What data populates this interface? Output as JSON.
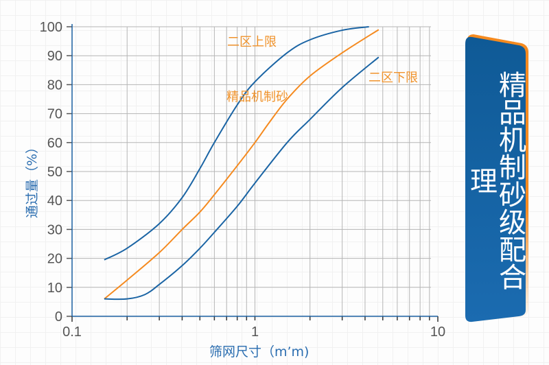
{
  "chart_data": {
    "type": "line",
    "title": "",
    "xlabel": "筛网尺寸（m’m)",
    "ylabel": "通过量（%）",
    "xscale": "log",
    "xlim": [
      0.1,
      10
    ],
    "ylim": [
      0,
      100
    ],
    "grid": true,
    "xticks": [
      "0.1",
      "1",
      "10"
    ],
    "yticks": [
      "0",
      "10",
      "20",
      "30",
      "40",
      "50",
      "60",
      "70",
      "80",
      "90",
      "100"
    ],
    "series": [
      {
        "name": "二区上限",
        "color": "#1a64a4",
        "x": [
          0.15,
          0.2,
          0.3,
          0.4,
          0.5,
          0.6,
          0.8,
          1,
          1.5,
          2,
          3,
          4.2
        ],
        "y": [
          19.5,
          23.5,
          32,
          41,
          51,
          60,
          73,
          81,
          91,
          95.5,
          98.8,
          100
        ]
      },
      {
        "name": "精品机制砂",
        "color": "#f58a1f",
        "x": [
          0.15,
          0.2,
          0.3,
          0.4,
          0.5,
          0.6,
          0.8,
          1,
          1.2,
          1.5,
          2,
          3,
          4.75
        ],
        "y": [
          6,
          12.5,
          22,
          30,
          36,
          42,
          52,
          60,
          67,
          75,
          83,
          91,
          99
        ]
      },
      {
        "name": "二区下限",
        "color": "#1a64a4",
        "x": [
          0.15,
          0.2,
          0.25,
          0.3,
          0.4,
          0.5,
          0.6,
          0.8,
          1,
          1.5,
          2,
          3,
          4.75
        ],
        "y": [
          6,
          6,
          7.5,
          11,
          17.5,
          23.5,
          29,
          38,
          46,
          60,
          68,
          79,
          89.5
        ]
      }
    ]
  },
  "banner": {
    "text": "精品机制砂级配合理",
    "color": "#1a64a4",
    "accent": "#f58a1f"
  }
}
